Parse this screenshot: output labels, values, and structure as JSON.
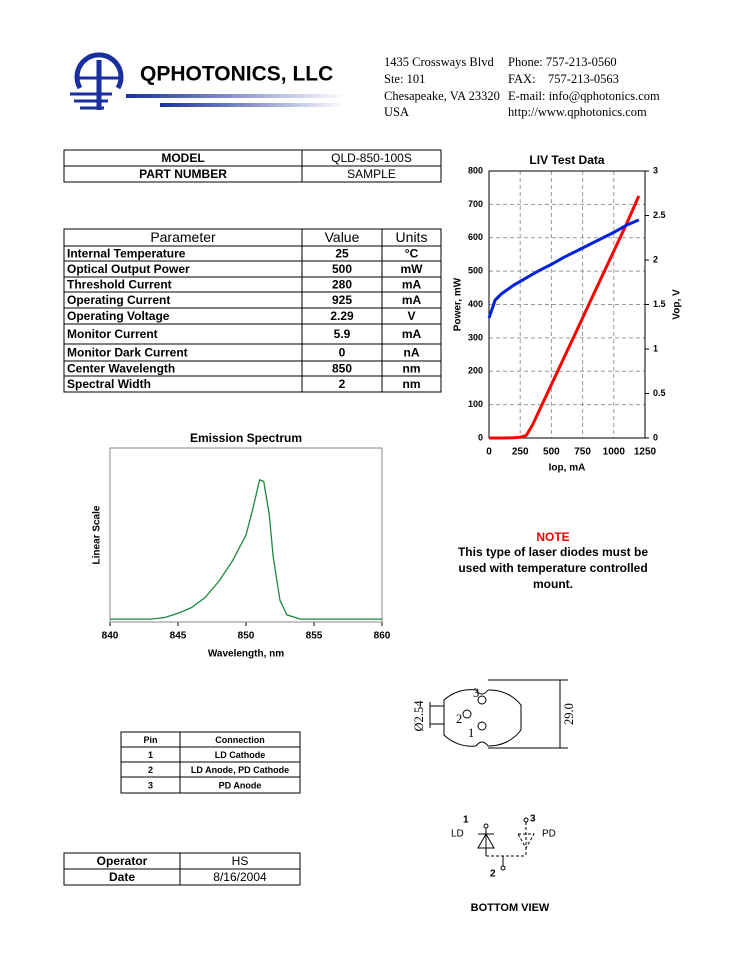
{
  "header": {
    "company": "QPHOTONICS, LLC",
    "address": [
      "1435 Crossways Blvd",
      "Ste: 101",
      "Chesapeake, VA 23320",
      "USA"
    ],
    "contact": [
      "Phone: 757-213-0560",
      "FAX:    757-213-0563",
      "E-mail: info@qphotonics.com",
      "http://www.qphotonics.com"
    ]
  },
  "model_table": {
    "rows": [
      [
        "MODEL",
        "QLD-850-100S"
      ],
      [
        "PART NUMBER",
        "SAMPLE"
      ]
    ]
  },
  "parameters": {
    "header": [
      "Parameter",
      "Value",
      "Units"
    ],
    "rows": [
      [
        "Internal Temperature",
        "25",
        "°C"
      ],
      [
        "Optical Output Power",
        "500",
        "mW"
      ],
      [
        "Threshold Current",
        "280",
        "mA"
      ],
      [
        "Operating Current",
        "925",
        "mA"
      ],
      [
        "Operating Voltage",
        "2.29",
        "V"
      ],
      [
        "Monitor Current",
        "5.9",
        "mA"
      ],
      [
        "Monitor Dark Current",
        "0",
        "nA"
      ],
      [
        "Center Wavelength",
        "850",
        "nm"
      ],
      [
        "Spectral Width",
        "2",
        "nm"
      ]
    ]
  },
  "chart_data": [
    {
      "type": "line",
      "title": "LIV Test Data",
      "xlabel": "Iop, mA",
      "ylabel": "Power, mW",
      "y2label": "Vop, V",
      "x": [
        0,
        50,
        100,
        200,
        250,
        300,
        350,
        400,
        500,
        600,
        700,
        800,
        900,
        1000,
        1100,
        1200
      ],
      "series": [
        {
          "color": "#ff0000",
          "values": [
            0,
            0,
            0,
            1,
            2,
            8,
            40,
            80,
            160,
            240,
            320,
            400,
            480,
            560,
            640,
            725
          ]
        },
        {
          "color": "#0022dd",
          "axis": "y2",
          "values": [
            1.35,
            1.55,
            1.62,
            1.72,
            1.76,
            1.8,
            1.84,
            1.88,
            1.95,
            2.03,
            2.1,
            2.17,
            2.24,
            2.31,
            2.39,
            2.45
          ]
        }
      ],
      "xlim": [
        0,
        1250
      ],
      "xticks": [
        0,
        250,
        500,
        750,
        1000,
        1250
      ],
      "ylim": [
        0,
        800
      ],
      "yticks": [
        0,
        100,
        200,
        300,
        400,
        500,
        600,
        700,
        800
      ],
      "y2lim": [
        0,
        3
      ],
      "y2ticks": [
        0,
        0.5,
        1,
        1.5,
        2,
        2.5,
        3
      ],
      "grid": true
    },
    {
      "type": "line",
      "title": "Emission Spectrum",
      "xlabel": "Wavelength, nm",
      "ylabel": "Linear Scale",
      "x": [
        840,
        843,
        844,
        845,
        846,
        847,
        848,
        849,
        850,
        850.5,
        851,
        851.3,
        851.7,
        852,
        852.5,
        853,
        854,
        855,
        860
      ],
      "values": [
        0.02,
        0.02,
        0.03,
        0.06,
        0.1,
        0.17,
        0.28,
        0.42,
        0.6,
        0.78,
        0.98,
        0.97,
        0.75,
        0.45,
        0.15,
        0.05,
        0.02,
        0.02,
        0.02
      ],
      "color": "#1a8a3a",
      "xlim": [
        840,
        860
      ],
      "xticks": [
        840,
        845,
        850,
        855,
        860
      ],
      "ylim": [
        0,
        1.2
      ],
      "grid": false
    }
  ],
  "note": {
    "title": "NOTE",
    "lines": [
      "This type of laser diodes must be",
      "used with temperature controlled",
      "mount."
    ]
  },
  "pin_table": {
    "header": [
      "Pin",
      "Connection"
    ],
    "rows": [
      [
        "1",
        "LD Cathode"
      ],
      [
        "2",
        "LD Anode, PD Cathode"
      ],
      [
        "3",
        "PD Anode"
      ]
    ]
  },
  "operator_table": {
    "rows": [
      [
        "Operator",
        "HS"
      ],
      [
        "Date",
        "8/16/2004"
      ]
    ]
  },
  "package": {
    "pins": [
      "3",
      "2",
      "1"
    ],
    "diameter": "Ø2.54",
    "height": "29.0"
  },
  "schematic": {
    "pins": [
      "1",
      "3",
      "2"
    ],
    "ld": "LD",
    "pd": "PD",
    "caption": "BOTTOM VIEW"
  }
}
